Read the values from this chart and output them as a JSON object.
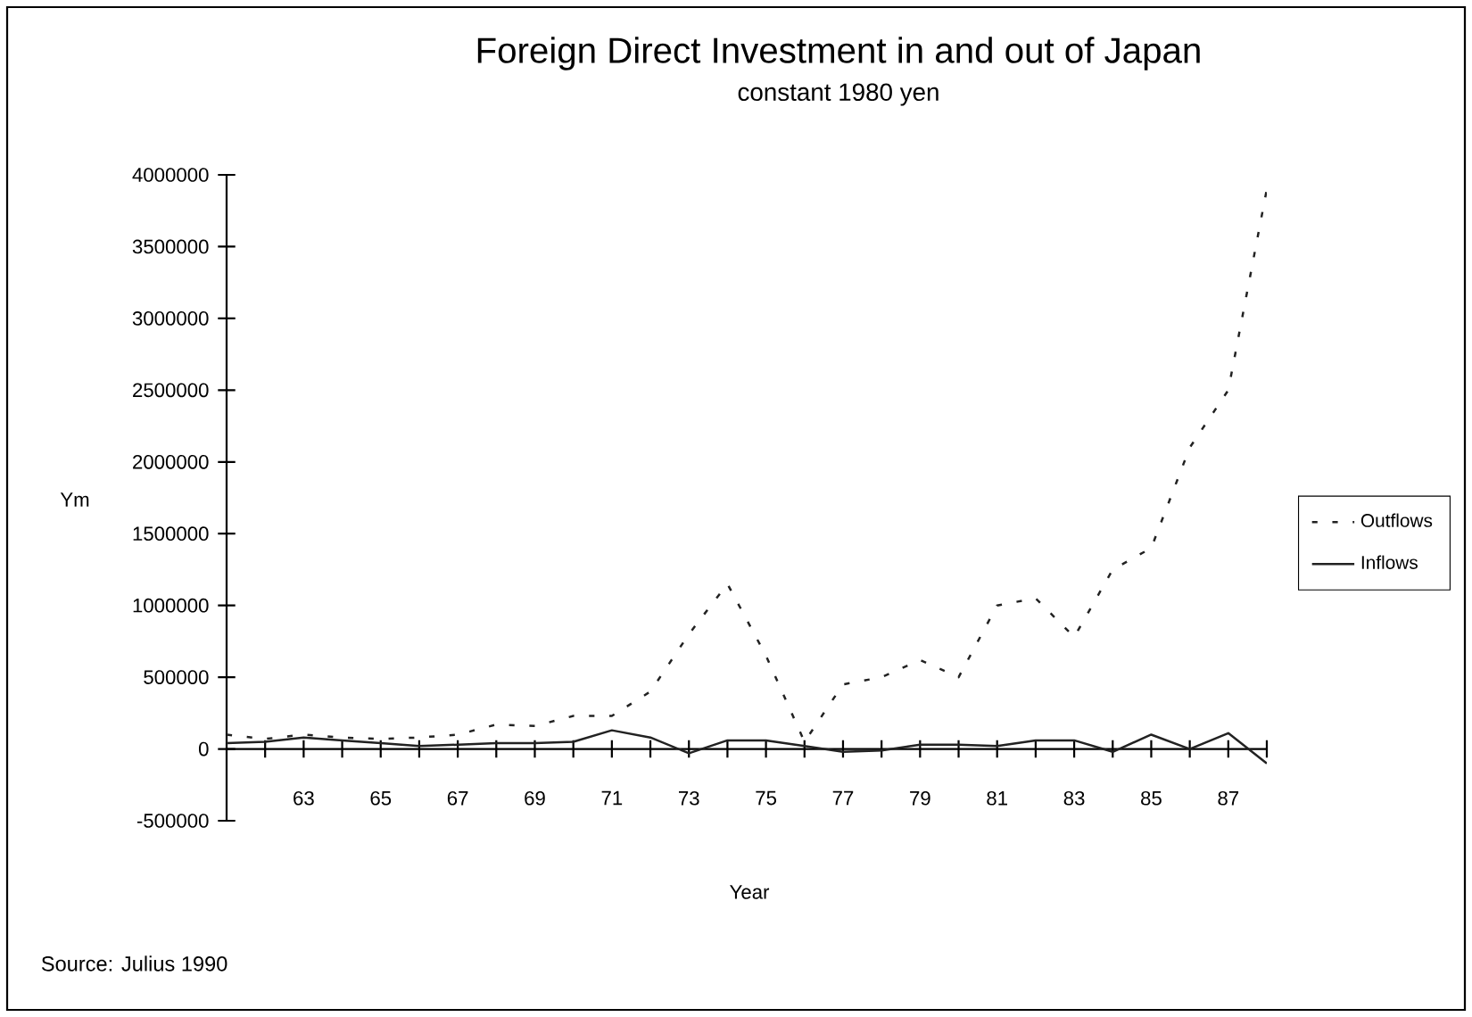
{
  "chart_data": {
    "type": "line",
    "title": "Foreign Direct Investment in and out of Japan",
    "subtitle": "constant 1980 yen",
    "xlabel": "Year",
    "ylabel": "Ym",
    "categories": [
      null,
      null,
      "63",
      null,
      "65",
      null,
      "67",
      null,
      "69",
      null,
      "71",
      null,
      "73",
      null,
      "75",
      null,
      "77",
      null,
      "79",
      null,
      "81",
      null,
      "83",
      null,
      "85",
      null,
      "87",
      null
    ],
    "series": [
      {
        "name": "Outflows",
        "color": "#222222",
        "line_style": "dashed",
        "values": [
          100000,
          70000,
          100000,
          80000,
          70000,
          80000,
          100000,
          170000,
          160000,
          230000,
          230000,
          400000,
          800000,
          1150000,
          650000,
          50000,
          450000,
          500000,
          620000,
          500000,
          1000000,
          1050000,
          780000,
          1250000,
          1400000,
          2100000,
          2500000,
          3900000
        ]
      },
      {
        "name": "Inflows",
        "color": "#222222",
        "line_style": "solid",
        "values": [
          40000,
          50000,
          80000,
          60000,
          40000,
          20000,
          30000,
          40000,
          40000,
          50000,
          130000,
          80000,
          -30000,
          60000,
          60000,
          20000,
          -20000,
          -10000,
          30000,
          30000,
          20000,
          60000,
          60000,
          -20000,
          100000,
          0,
          110000,
          -100000
        ]
      }
    ],
    "ylim": [
      -500000,
      4000000
    ],
    "yticks": [
      -500000,
      0,
      500000,
      1000000,
      1500000,
      2000000,
      2500000,
      3000000,
      3500000,
      4000000
    ],
    "grid": false,
    "legend": "right",
    "marker": "none",
    "annotations": [
      "Source: Julius 1990"
    ]
  }
}
